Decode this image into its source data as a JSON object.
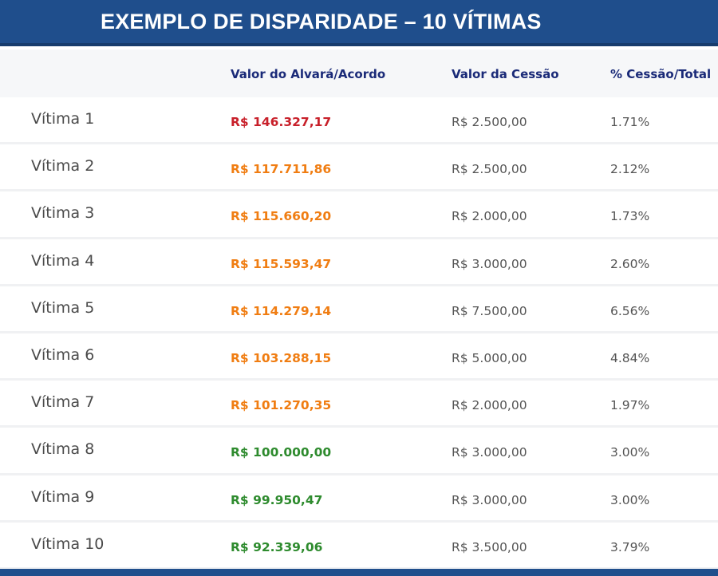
{
  "title": "EXEMPLO DE DISPARIDADE – 10 VÍTIMAS",
  "columns": {
    "alvara": "Valor do Alvará/Acordo",
    "cessao": "Valor da Cessão",
    "pct": "% Cessão/Total"
  },
  "colors": {
    "red": "#c8202a",
    "orange": "#f07d12",
    "green": "#2e8b2e",
    "header_blue": "#1f4e8c",
    "column_header_text": "#1a2a78"
  },
  "rows": [
    {
      "name": "Vítima 1",
      "alvara": "R$ 146.327,17",
      "cessao": "R$ 2.500,00",
      "pct": "1.71%",
      "color": "red"
    },
    {
      "name": "Vítima 2",
      "alvara": "R$ 117.711,86",
      "cessao": "R$ 2.500,00",
      "pct": "2.12%",
      "color": "orange"
    },
    {
      "name": "Vítima 3",
      "alvara": "R$ 115.660,20",
      "cessao": "R$ 2.000,00",
      "pct": "1.73%",
      "color": "orange"
    },
    {
      "name": "Vítima 4",
      "alvara": "R$ 115.593,47",
      "cessao": "R$ 3.000,00",
      "pct": "2.60%",
      "color": "orange"
    },
    {
      "name": "Vítima 5",
      "alvara": "R$ 114.279,14",
      "cessao": "R$ 7.500,00",
      "pct": "6.56%",
      "color": "orange"
    },
    {
      "name": "Vítima 6",
      "alvara": "R$ 103.288,15",
      "cessao": "R$ 5.000,00",
      "pct": "4.84%",
      "color": "orange"
    },
    {
      "name": "Vítima 7",
      "alvara": "R$ 101.270,35",
      "cessao": "R$ 2.000,00",
      "pct": "1.97%",
      "color": "orange"
    },
    {
      "name": "Vítima 8",
      "alvara": "R$ 100.000,00",
      "cessao": "R$ 3.000,00",
      "pct": "3.00%",
      "color": "green"
    },
    {
      "name": "Vítima 9",
      "alvara": "R$ 99.950,47",
      "cessao": "R$ 3.000,00",
      "pct": "3.00%",
      "color": "green"
    },
    {
      "name": "Vítima 10",
      "alvara": "R$ 92.339,06",
      "cessao": "R$ 3.500,00",
      "pct": "3.79%",
      "color": "green"
    }
  ]
}
